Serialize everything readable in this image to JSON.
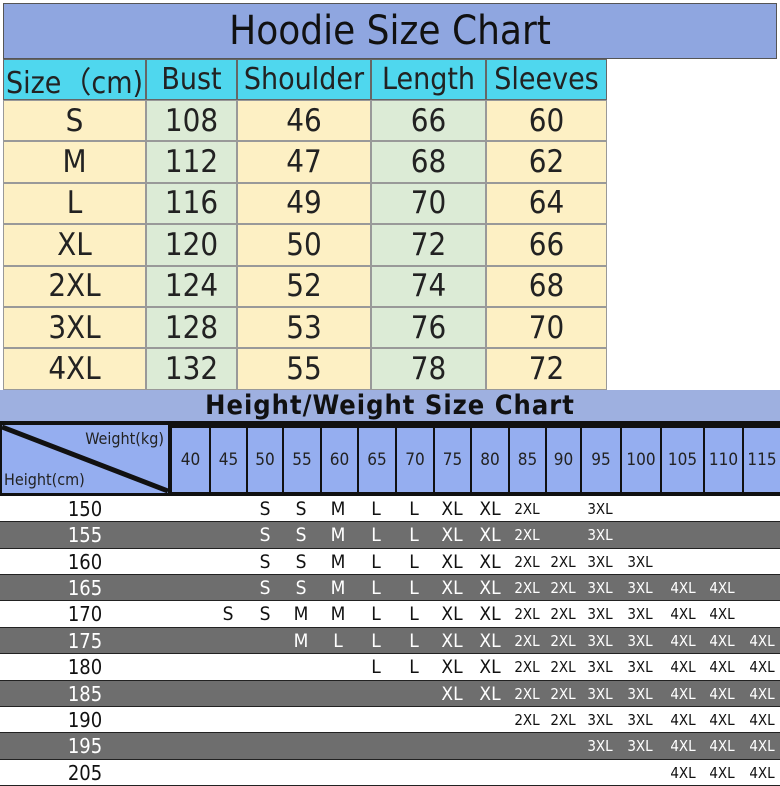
{
  "hoodie_chart": {
    "title": "Hoodie Size Chart",
    "headers": [
      "Size（cm)",
      "Bust",
      "Shoulder",
      "Length",
      "Sleeves"
    ],
    "rows": [
      [
        "S",
        "108",
        "46",
        "66",
        "60"
      ],
      [
        "M",
        "112",
        "47",
        "68",
        "62"
      ],
      [
        "L",
        "116",
        "49",
        "70",
        "64"
      ],
      [
        "XL",
        "120",
        "50",
        "72",
        "66"
      ],
      [
        "2XL",
        "124",
        "52",
        "74",
        "68"
      ],
      [
        "3XL",
        "128",
        "53",
        "76",
        "70"
      ],
      [
        "4XL",
        "132",
        "55",
        "78",
        "72"
      ]
    ]
  },
  "hw_chart": {
    "title": "Height/Weight Size Chart",
    "weight_label": "Weight(kg)",
    "height_label": "Height(cm)",
    "weights": [
      "40",
      "45",
      "50",
      "55",
      "60",
      "65",
      "70",
      "75",
      "80",
      "85",
      "90",
      "95",
      "100",
      "105",
      "110",
      "115"
    ],
    "rows": [
      {
        "height": "150",
        "sizes": [
          "",
          "",
          "S",
          "S",
          "M",
          "L",
          "L",
          "XL",
          "XL",
          "2XL",
          "",
          "3XL",
          "",
          "",
          "",
          ""
        ]
      },
      {
        "height": "155",
        "sizes": [
          "",
          "",
          "S",
          "S",
          "M",
          "L",
          "L",
          "XL",
          "XL",
          "2XL",
          "",
          "3XL",
          "",
          "",
          "",
          ""
        ]
      },
      {
        "height": "160",
        "sizes": [
          "",
          "",
          "S",
          "S",
          "M",
          "L",
          "L",
          "XL",
          "XL",
          "2XL",
          "2XL",
          "3XL",
          "3XL",
          "",
          "",
          ""
        ]
      },
      {
        "height": "165",
        "sizes": [
          "",
          "",
          "S",
          "S",
          "M",
          "L",
          "L",
          "XL",
          "XL",
          "2XL",
          "2XL",
          "3XL",
          "3XL",
          "4XL",
          "4XL",
          ""
        ]
      },
      {
        "height": "170",
        "sizes": [
          "",
          "S",
          "S",
          "M",
          "M",
          "L",
          "L",
          "XL",
          "XL",
          "2XL",
          "2XL",
          "3XL",
          "3XL",
          "4XL",
          "4XL",
          ""
        ]
      },
      {
        "height": "175",
        "sizes": [
          "",
          "",
          "",
          "M",
          "L",
          "L",
          "L",
          "XL",
          "XL",
          "2XL",
          "2XL",
          "3XL",
          "3XL",
          "4XL",
          "4XL",
          "4XL"
        ]
      },
      {
        "height": "180",
        "sizes": [
          "",
          "",
          "",
          "",
          "",
          "L",
          "L",
          "XL",
          "XL",
          "2XL",
          "2XL",
          "3XL",
          "3XL",
          "4XL",
          "4XL",
          "4XL"
        ]
      },
      {
        "height": "185",
        "sizes": [
          "",
          "",
          "",
          "",
          "",
          "",
          "",
          "XL",
          "XL",
          "2XL",
          "2XL",
          "3XL",
          "3XL",
          "4XL",
          "4XL",
          "4XL"
        ]
      },
      {
        "height": "190",
        "sizes": [
          "",
          "",
          "",
          "",
          "",
          "",
          "",
          "",
          "",
          "2XL",
          "2XL",
          "3XL",
          "3XL",
          "4XL",
          "4XL",
          "4XL"
        ]
      },
      {
        "height": "195",
        "sizes": [
          "",
          "",
          "",
          "",
          "",
          "",
          "",
          "",
          "",
          "",
          "",
          "3XL",
          "3XL",
          "4XL",
          "4XL",
          "4XL"
        ]
      },
      {
        "height": "205",
        "sizes": [
          "",
          "",
          "",
          "",
          "",
          "",
          "",
          "",
          "",
          "",
          "",
          "",
          "",
          "4XL",
          "4XL",
          "4XL"
        ]
      }
    ]
  },
  "colors": {
    "title_bg": "#8fa6e0",
    "header_bg": "#4fd7ee",
    "cell_yellow": "#fdf0c4",
    "cell_green": "#dcebd6",
    "weight_header_bg": "#95aef0",
    "dark_row": "#6e6e6e"
  }
}
